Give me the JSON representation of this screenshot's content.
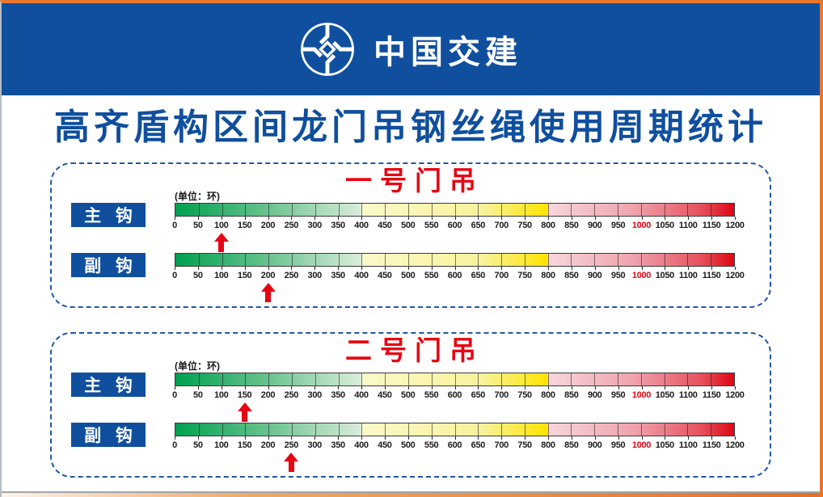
{
  "header": {
    "logo_text": "中国交建",
    "bg_color": "#0f4f9e"
  },
  "title": "高齐盾构区间龙门吊钢丝绳使用周期统计",
  "unit_label": "(单位：环)",
  "colors": {
    "brand_blue": "#0f4f9e",
    "accent_red": "#e60613",
    "frame_orange": "#e8772e",
    "dash_border_blue": "#2356a4",
    "tick_text": "#1c1c1c"
  },
  "scale": {
    "min": 0,
    "max": 1200,
    "step": 50,
    "highlight_tick": 1000,
    "ticks": [
      0,
      50,
      100,
      150,
      200,
      250,
      300,
      350,
      400,
      450,
      500,
      550,
      600,
      650,
      700,
      750,
      800,
      850,
      900,
      950,
      1000,
      1050,
      1100,
      1150,
      1200
    ],
    "gradient": [
      {
        "pos": 0,
        "color": "#00a050"
      },
      {
        "pos": 15,
        "color": "#5fbf87"
      },
      {
        "pos": 33.2,
        "color": "#d9edda"
      },
      {
        "pos": 33.5,
        "color": "#fbf9c8"
      },
      {
        "pos": 55,
        "color": "#f8f29b"
      },
      {
        "pos": 66.5,
        "color": "#ffe400"
      },
      {
        "pos": 66.8,
        "color": "#f6d6da"
      },
      {
        "pos": 82,
        "color": "#efa3ad"
      },
      {
        "pos": 94,
        "color": "#e5525e"
      },
      {
        "pos": 100,
        "color": "#df0614"
      }
    ]
  },
  "sections": [
    {
      "title": "一号门吊",
      "rows": [
        {
          "label": "主 钩",
          "value": 100,
          "show_unit": true
        },
        {
          "label": "副 钩",
          "value": 200,
          "show_unit": false
        }
      ]
    },
    {
      "title": "二号门吊",
      "rows": [
        {
          "label": "主 钩",
          "value": 150,
          "show_unit": true
        },
        {
          "label": "副 钩",
          "value": 250,
          "show_unit": false
        }
      ]
    }
  ],
  "chart_data": [
    {
      "type": "bar",
      "title": "一号门吊",
      "categories": [
        "主钩",
        "副钩"
      ],
      "values": [
        100,
        200
      ],
      "xlabel": "(单位：环)",
      "xlim": [
        0,
        1200
      ],
      "tick_step": 50,
      "highlighted_tick": 1000,
      "legend_position": "none",
      "color_zones": [
        {
          "range": [
            0,
            400
          ],
          "color": "green gradient #00a050→#d9edda"
        },
        {
          "range": [
            400,
            800
          ],
          "color": "yellow gradient #fbf9c8→#ffe400"
        },
        {
          "range": [
            800,
            1200
          ],
          "color": "red gradient #f6d6da→#df0614"
        }
      ]
    },
    {
      "type": "bar",
      "title": "二号门吊",
      "categories": [
        "主钩",
        "副钩"
      ],
      "values": [
        150,
        250
      ],
      "xlabel": "(单位：环)",
      "xlim": [
        0,
        1200
      ],
      "tick_step": 50,
      "highlighted_tick": 1000,
      "legend_position": "none",
      "color_zones": [
        {
          "range": [
            0,
            400
          ],
          "color": "green gradient #00a050→#d9edda"
        },
        {
          "range": [
            400,
            800
          ],
          "color": "yellow gradient #fbf9c8→#ffe400"
        },
        {
          "range": [
            800,
            1200
          ],
          "color": "red gradient #f6d6da→#df0614"
        }
      ]
    }
  ]
}
